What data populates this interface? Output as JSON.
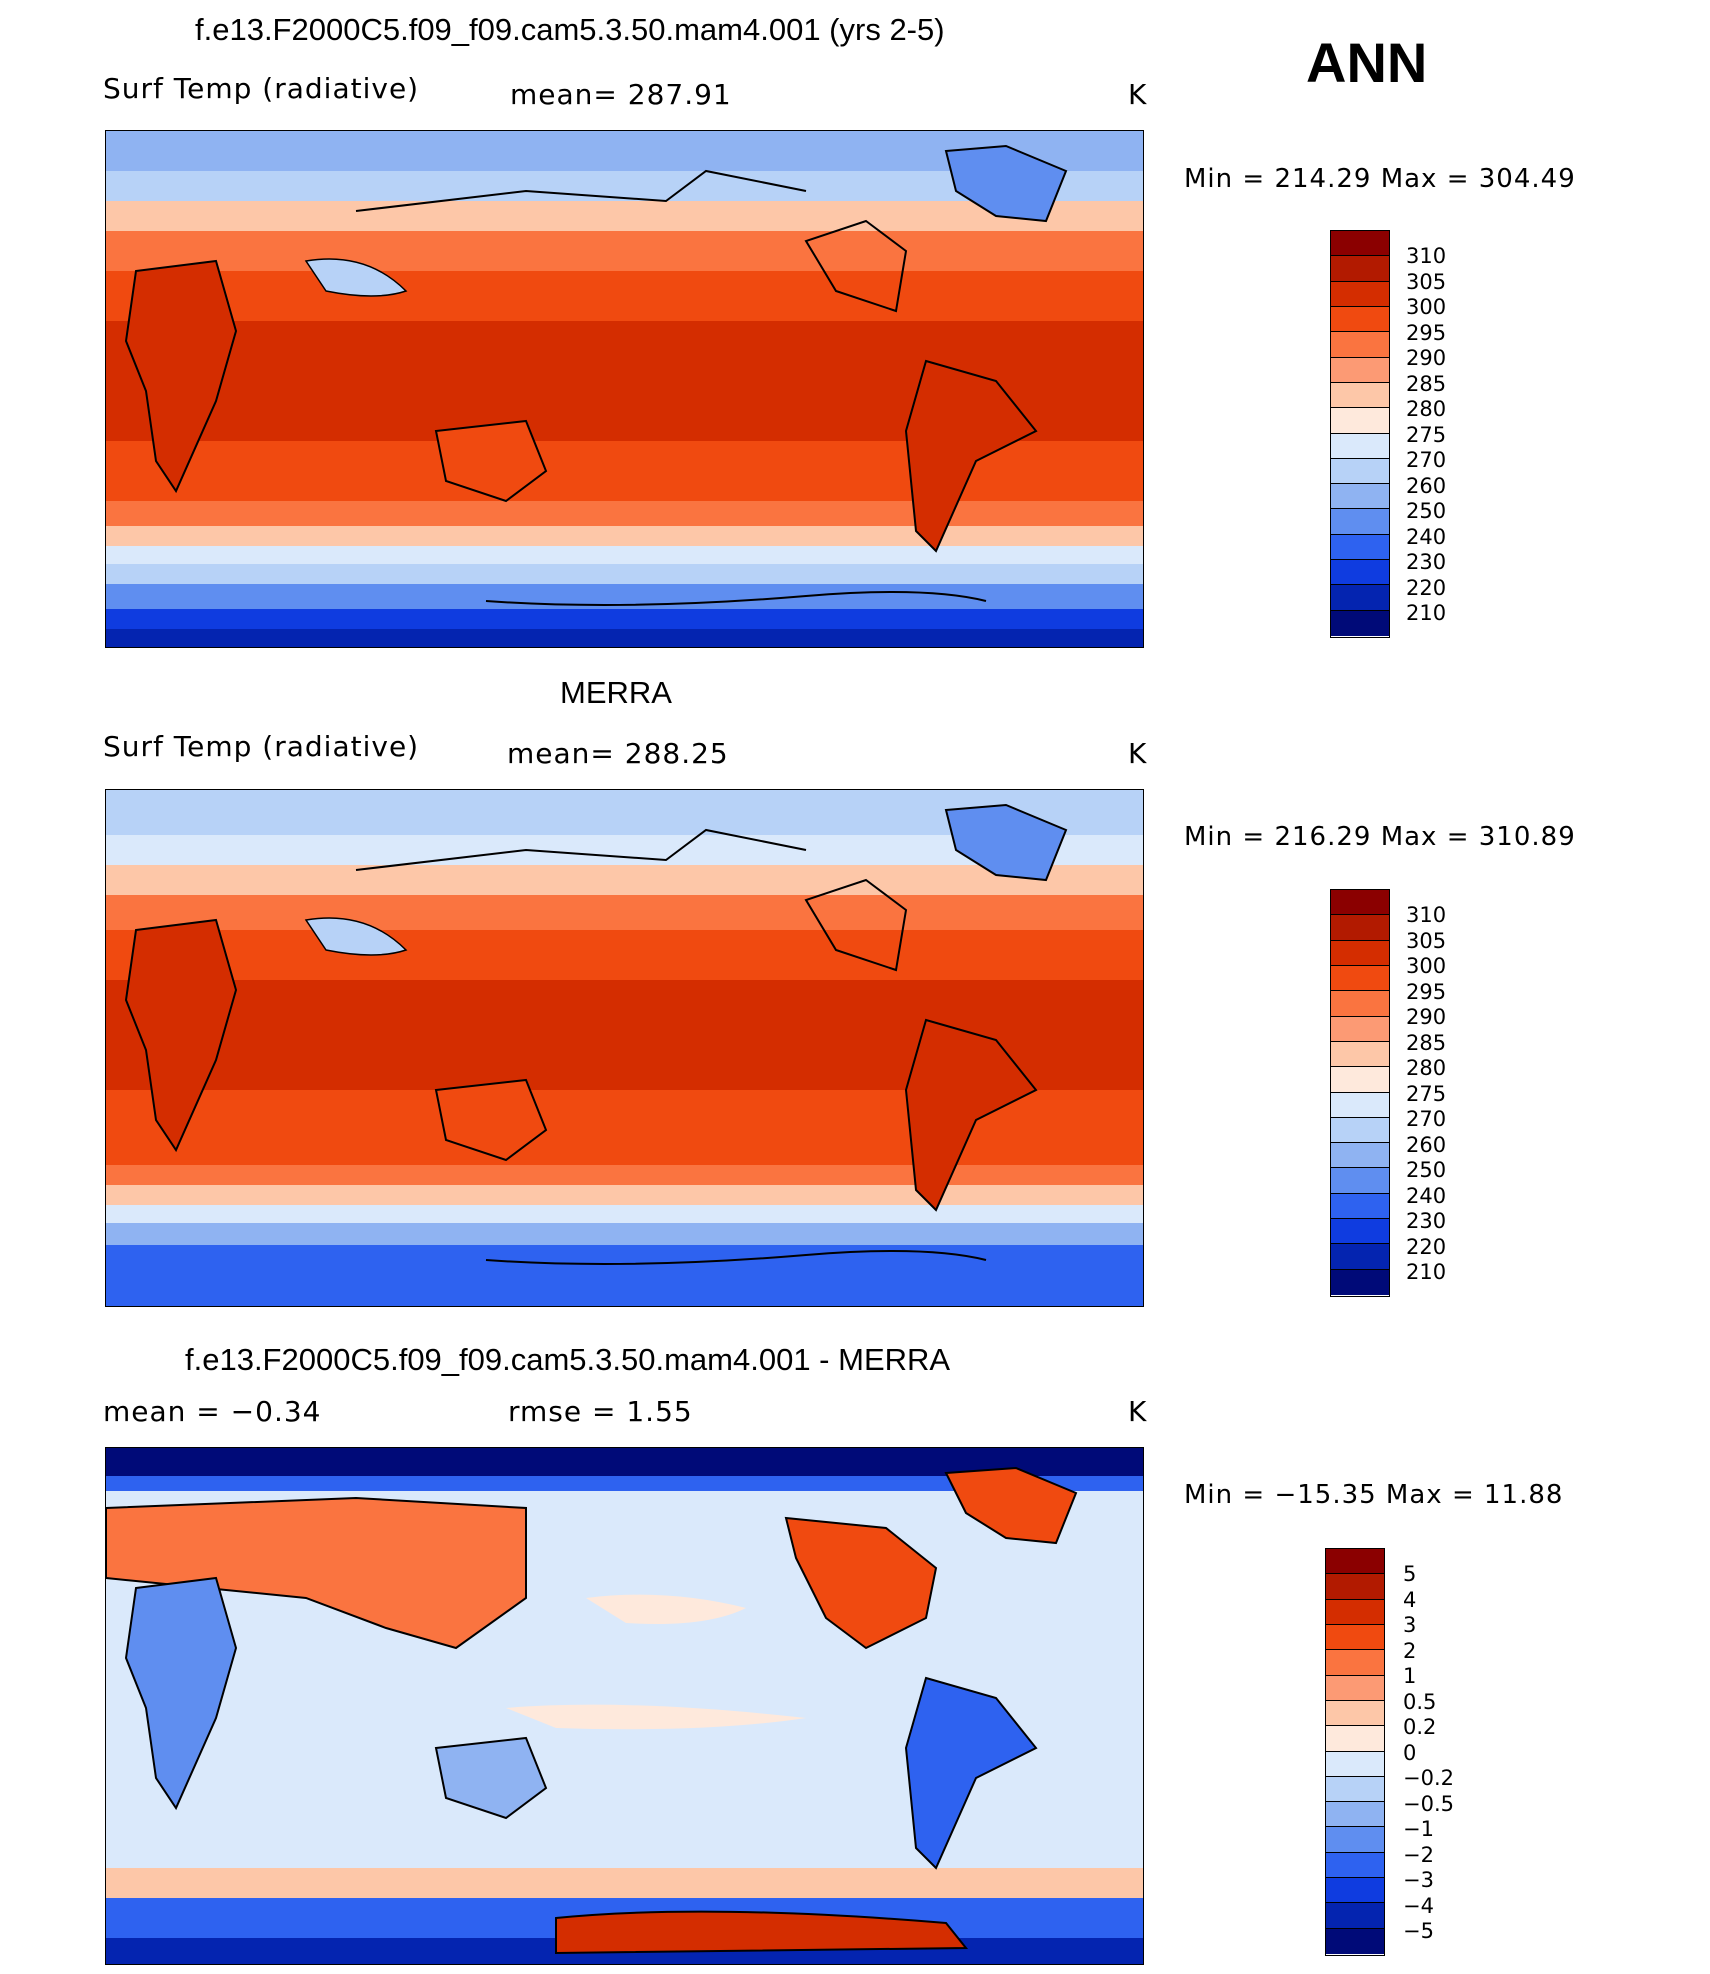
{
  "panel_label": "ANN",
  "panels": [
    {
      "title": "f.e13.F2000C5.f09_f09.cam5.3.50.mam4.001 (yrs 2-5)",
      "left_label": "Surf Temp (radiative)",
      "stat": "mean= 287.91",
      "units": "K",
      "minmax": "Min = 214.29 Max = 304.49"
    },
    {
      "title": "MERRA",
      "left_label": "Surf Temp (radiative)",
      "stat": "mean= 288.25",
      "units": "K",
      "minmax": "Min = 216.29 Max = 310.89"
    },
    {
      "title": "f.e13.F2000C5.f09_f09.cam5.3.50.mam4.001 - MERRA",
      "left_label": "mean =   −0.34",
      "stat": "rmse =    1.55",
      "units": "K",
      "minmax": "Min = −15.35 Max =  11.88"
    }
  ],
  "abs_scale": {
    "labels": [
      "310",
      "305",
      "300",
      "295",
      "290",
      "285",
      "280",
      "275",
      "270",
      "260",
      "250",
      "240",
      "230",
      "220",
      "210"
    ],
    "colors": [
      "#8b0000",
      "#b21a00",
      "#d42d00",
      "#f04a10",
      "#fa7440",
      "#fc9a74",
      "#fdc7a8",
      "#fee9dc",
      "#dae9fb",
      "#b7d2f7",
      "#8fb3f2",
      "#5f8ef0",
      "#2e62f0",
      "#0f3ce0",
      "#0424b0",
      "#000a78"
    ]
  },
  "diff_scale": {
    "labels": [
      "5",
      "4",
      "3",
      "2",
      "1",
      "0.5",
      "0.2",
      "0",
      "−0.2",
      "−0.5",
      "−1",
      "−2",
      "−3",
      "−4",
      "−5"
    ],
    "colors": [
      "#8b0000",
      "#b21a00",
      "#d42d00",
      "#f04a10",
      "#fa7440",
      "#fc9a74",
      "#fdc7a8",
      "#fee9dc",
      "#dae9fb",
      "#b7d2f7",
      "#8fb3f2",
      "#5f8ef0",
      "#2e62f0",
      "#0f3ce0",
      "#0424b0",
      "#000a78"
    ]
  }
}
